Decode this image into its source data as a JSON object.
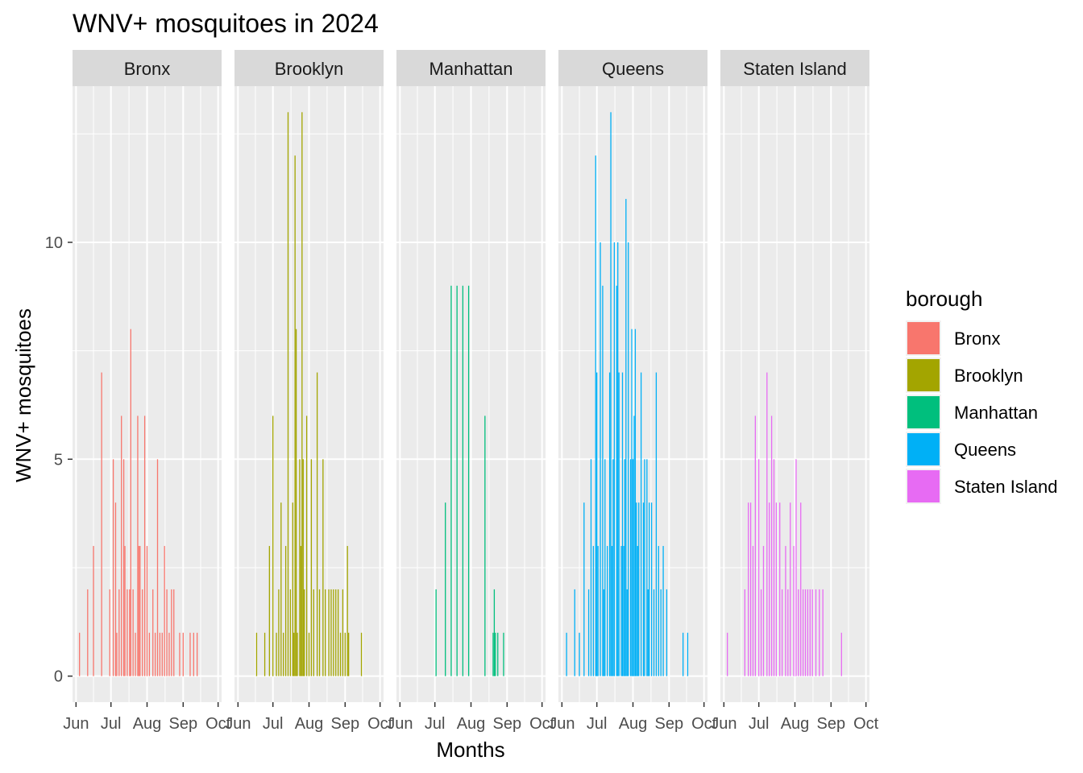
{
  "chart_data": {
    "type": "bar",
    "title": "WNV+ mosquitoes in 2024",
    "xlabel": "Months",
    "ylabel": "WNV+ mosquitoes",
    "x_ticks": [
      "Jun",
      "Jul",
      "Aug",
      "Sep",
      "Oct"
    ],
    "y_ticks": [
      0,
      5,
      10
    ],
    "ylim": [
      -0.6,
      13.6
    ],
    "grid": true,
    "legend": {
      "title": "borough",
      "position": "right",
      "entries": [
        "Bronx",
        "Brooklyn",
        "Manhattan",
        "Queens",
        "Staten Island"
      ]
    },
    "colors": {
      "Bronx": "#F8766D",
      "Brooklyn": "#A3A500",
      "Manhattan": "#00BF7D",
      "Queens": "#00B0F6",
      "Staten Island": "#E76BF3"
    },
    "facets": [
      {
        "name": "Bronx",
        "values": [
          [
            "2024-06-04",
            1
          ],
          [
            "2024-06-11",
            2
          ],
          [
            "2024-06-16",
            3
          ],
          [
            "2024-06-23",
            7
          ],
          [
            "2024-06-30",
            2
          ],
          [
            "2024-07-03",
            5
          ],
          [
            "2024-07-05",
            4
          ],
          [
            "2024-07-06",
            1
          ],
          [
            "2024-07-08",
            2
          ],
          [
            "2024-07-10",
            6
          ],
          [
            "2024-07-12",
            5
          ],
          [
            "2024-07-13",
            3
          ],
          [
            "2024-07-15",
            2
          ],
          [
            "2024-07-17",
            2
          ],
          [
            "2024-07-18",
            8
          ],
          [
            "2024-07-20",
            2
          ],
          [
            "2024-07-22",
            1
          ],
          [
            "2024-07-24",
            6
          ],
          [
            "2024-07-25",
            3
          ],
          [
            "2024-07-26",
            3
          ],
          [
            "2024-07-28",
            2
          ],
          [
            "2024-07-30",
            6
          ],
          [
            "2024-08-01",
            3
          ],
          [
            "2024-08-03",
            1
          ],
          [
            "2024-08-06",
            2
          ],
          [
            "2024-08-08",
            1
          ],
          [
            "2024-08-10",
            5
          ],
          [
            "2024-08-12",
            1
          ],
          [
            "2024-08-14",
            1
          ],
          [
            "2024-08-16",
            3
          ],
          [
            "2024-08-18",
            2
          ],
          [
            "2024-08-20",
            1
          ],
          [
            "2024-08-22",
            2
          ],
          [
            "2024-08-24",
            2
          ],
          [
            "2024-08-29",
            1
          ],
          [
            "2024-09-01",
            1
          ],
          [
            "2024-09-07",
            1
          ],
          [
            "2024-09-10",
            1
          ],
          [
            "2024-09-13",
            1
          ]
        ]
      },
      {
        "name": "Brooklyn",
        "values": [
          [
            "2024-06-17",
            1
          ],
          [
            "2024-06-24",
            1
          ],
          [
            "2024-06-28",
            3
          ],
          [
            "2024-07-01",
            6
          ],
          [
            "2024-07-04",
            1
          ],
          [
            "2024-07-06",
            2
          ],
          [
            "2024-07-08",
            4
          ],
          [
            "2024-07-10",
            1
          ],
          [
            "2024-07-12",
            3
          ],
          [
            "2024-07-14",
            13
          ],
          [
            "2024-07-16",
            2
          ],
          [
            "2024-07-18",
            4
          ],
          [
            "2024-07-19",
            1
          ],
          [
            "2024-07-20",
            12
          ],
          [
            "2024-07-21",
            8
          ],
          [
            "2024-07-22",
            1
          ],
          [
            "2024-07-24",
            5
          ],
          [
            "2024-07-25",
            3
          ],
          [
            "2024-07-26",
            13
          ],
          [
            "2024-07-27",
            5
          ],
          [
            "2024-07-28",
            2
          ],
          [
            "2024-07-30",
            6
          ],
          [
            "2024-08-01",
            1
          ],
          [
            "2024-08-03",
            5
          ],
          [
            "2024-08-05",
            2
          ],
          [
            "2024-08-08",
            7
          ],
          [
            "2024-08-10",
            2
          ],
          [
            "2024-08-13",
            5
          ],
          [
            "2024-08-15",
            2
          ],
          [
            "2024-08-18",
            2
          ],
          [
            "2024-08-20",
            2
          ],
          [
            "2024-08-22",
            2
          ],
          [
            "2024-08-24",
            2
          ],
          [
            "2024-08-26",
            2
          ],
          [
            "2024-08-28",
            1
          ],
          [
            "2024-08-30",
            2
          ],
          [
            "2024-09-01",
            1
          ],
          [
            "2024-09-03",
            3
          ],
          [
            "2024-09-04",
            1
          ],
          [
            "2024-09-15",
            1
          ]
        ]
      },
      {
        "name": "Manhattan",
        "values": [
          [
            "2024-07-02",
            2
          ],
          [
            "2024-07-10",
            4
          ],
          [
            "2024-07-15",
            9
          ],
          [
            "2024-07-20",
            9
          ],
          [
            "2024-07-25",
            9
          ],
          [
            "2024-07-30",
            9
          ],
          [
            "2024-08-13",
            6
          ],
          [
            "2024-08-20",
            1
          ],
          [
            "2024-08-21",
            2
          ],
          [
            "2024-08-22",
            1
          ],
          [
            "2024-08-24",
            1
          ],
          [
            "2024-08-29",
            1
          ]
        ]
      },
      {
        "name": "Queens",
        "values": [
          [
            "2024-06-05",
            1
          ],
          [
            "2024-06-12",
            2
          ],
          [
            "2024-06-16",
            1
          ],
          [
            "2024-06-20",
            4
          ],
          [
            "2024-06-24",
            2
          ],
          [
            "2024-06-26",
            5
          ],
          [
            "2024-06-28",
            3
          ],
          [
            "2024-06-30",
            12
          ],
          [
            "2024-07-01",
            7
          ],
          [
            "2024-07-02",
            3
          ],
          [
            "2024-07-04",
            10
          ],
          [
            "2024-07-06",
            9
          ],
          [
            "2024-07-07",
            2
          ],
          [
            "2024-07-08",
            5
          ],
          [
            "2024-07-10",
            3
          ],
          [
            "2024-07-12",
            7
          ],
          [
            "2024-07-13",
            13
          ],
          [
            "2024-07-14",
            3
          ],
          [
            "2024-07-15",
            5
          ],
          [
            "2024-07-16",
            10
          ],
          [
            "2024-07-18",
            9
          ],
          [
            "2024-07-19",
            10
          ],
          [
            "2024-07-20",
            7
          ],
          [
            "2024-07-22",
            3
          ],
          [
            "2024-07-23",
            7
          ],
          [
            "2024-07-24",
            3
          ],
          [
            "2024-07-25",
            5
          ],
          [
            "2024-07-26",
            11
          ],
          [
            "2024-07-27",
            2
          ],
          [
            "2024-07-28",
            10
          ],
          [
            "2024-07-30",
            5
          ],
          [
            "2024-07-31",
            8
          ],
          [
            "2024-08-01",
            5
          ],
          [
            "2024-08-02",
            6
          ],
          [
            "2024-08-03",
            8
          ],
          [
            "2024-08-04",
            4
          ],
          [
            "2024-08-05",
            3
          ],
          [
            "2024-08-06",
            4
          ],
          [
            "2024-08-08",
            7
          ],
          [
            "2024-08-10",
            4
          ],
          [
            "2024-08-11",
            5
          ],
          [
            "2024-08-13",
            5
          ],
          [
            "2024-08-14",
            2
          ],
          [
            "2024-08-15",
            4
          ],
          [
            "2024-08-17",
            4
          ],
          [
            "2024-08-19",
            2
          ],
          [
            "2024-08-21",
            7
          ],
          [
            "2024-08-23",
            3
          ],
          [
            "2024-08-25",
            2
          ],
          [
            "2024-08-27",
            3
          ],
          [
            "2024-08-30",
            2
          ],
          [
            "2024-09-13",
            1
          ],
          [
            "2024-09-17",
            1
          ]
        ]
      },
      {
        "name": "Staten Island",
        "values": [
          [
            "2024-06-04",
            1
          ],
          [
            "2024-06-19",
            2
          ],
          [
            "2024-06-22",
            4
          ],
          [
            "2024-06-24",
            4
          ],
          [
            "2024-06-26",
            3
          ],
          [
            "2024-06-28",
            6
          ],
          [
            "2024-07-01",
            5
          ],
          [
            "2024-07-03",
            2
          ],
          [
            "2024-07-05",
            3
          ],
          [
            "2024-07-08",
            7
          ],
          [
            "2024-07-10",
            4
          ],
          [
            "2024-07-12",
            6
          ],
          [
            "2024-07-14",
            5
          ],
          [
            "2024-07-16",
            4
          ],
          [
            "2024-07-19",
            4
          ],
          [
            "2024-07-21",
            2
          ],
          [
            "2024-07-24",
            3
          ],
          [
            "2024-07-26",
            2
          ],
          [
            "2024-07-28",
            4
          ],
          [
            "2024-07-31",
            3
          ],
          [
            "2024-08-02",
            5
          ],
          [
            "2024-08-04",
            2
          ],
          [
            "2024-08-06",
            4
          ],
          [
            "2024-08-08",
            2
          ],
          [
            "2024-08-10",
            2
          ],
          [
            "2024-08-12",
            2
          ],
          [
            "2024-08-14",
            2
          ],
          [
            "2024-08-16",
            2
          ],
          [
            "2024-08-19",
            2
          ],
          [
            "2024-08-22",
            2
          ],
          [
            "2024-08-25",
            2
          ],
          [
            "2024-09-10",
            1
          ]
        ]
      }
    ]
  }
}
